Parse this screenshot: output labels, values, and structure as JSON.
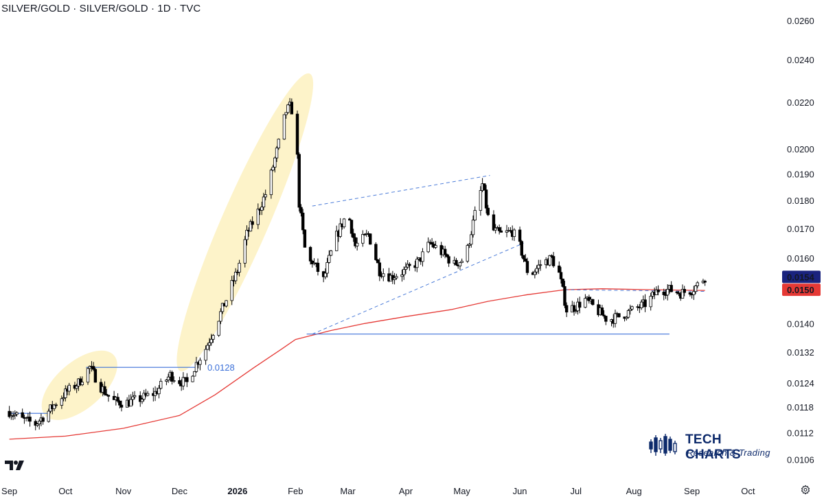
{
  "header": {
    "title": "SILVER/GOLD · SILVER/GOLD · 1D · TVC"
  },
  "brand": {
    "name": "TECH CHARTS",
    "subtitle": "Research & Trading",
    "icon": "candlestick-bars-icon",
    "color": "#0d2a6b"
  },
  "icons": {
    "platform_logo": "tradingview-logo-icon",
    "settings": "settings-gear-icon"
  },
  "colors": {
    "up_candle_fill": "#ffffff",
    "candle_outline": "#000000",
    "down_candle_fill": "#000000",
    "moving_average": "#e53935",
    "trendline": "#4a7bd8",
    "horizontal_level": "#3a6fd8",
    "highlight_ellipse": "#fdf3c9",
    "last_price_badge": "#1a237e",
    "ma_badge": "#e53935"
  },
  "chart_data": {
    "type": "candlestick",
    "title": "SILVER/GOLD · SILVER/GOLD · 1D · TVC",
    "interval": "1D",
    "y_scale": "log",
    "ylim": [
      0.0103,
      0.0263
    ],
    "y_ticks": [
      "0.0260",
      "0.0240",
      "0.0220",
      "0.0200",
      "0.0190",
      "0.0180",
      "0.0170",
      "0.0160",
      "0.0140",
      "0.0132",
      "0.0124",
      "0.0118",
      "0.0112",
      "0.0106"
    ],
    "x_ticks": [
      {
        "label": "Sep",
        "date": "2025-09-01"
      },
      {
        "label": "Oct",
        "date": "2025-10-01"
      },
      {
        "label": "Nov",
        "date": "2025-11-01"
      },
      {
        "label": "Dec",
        "date": "2025-12-01"
      },
      {
        "label": "2026",
        "date": "2026-01-01",
        "bold": true
      },
      {
        "label": "Feb",
        "date": "2026-02-01"
      },
      {
        "label": "Mar",
        "date": "2026-03-01"
      },
      {
        "label": "Apr",
        "date": "2026-04-01"
      },
      {
        "label": "May",
        "date": "2026-05-01"
      },
      {
        "label": "Jun",
        "date": "2026-06-01"
      },
      {
        "label": "Jul",
        "date": "2026-07-01"
      },
      {
        "label": "Aug",
        "date": "2026-08-01"
      },
      {
        "label": "Sep",
        "date": "2026-09-01"
      },
      {
        "label": "Oct",
        "date": "2026-10-01"
      }
    ],
    "price_path": [
      [
        "2025-09-01",
        0.0117
      ],
      [
        "2025-09-08",
        0.0115
      ],
      [
        "2025-09-15",
        0.0114
      ],
      [
        "2025-09-22",
        0.0117
      ],
      [
        "2025-10-01",
        0.01215
      ],
      [
        "2025-10-08",
        0.0124
      ],
      [
        "2025-10-14",
        0.0128
      ],
      [
        "2025-10-20",
        0.0123
      ],
      [
        "2025-10-26",
        0.01195
      ],
      [
        "2025-11-02",
        0.0119
      ],
      [
        "2025-11-10",
        0.012
      ],
      [
        "2025-11-18",
        0.01215
      ],
      [
        "2025-11-26",
        0.0126
      ],
      [
        "2025-12-01",
        0.01245
      ],
      [
        "2025-12-05",
        0.0124
      ],
      [
        "2025-12-10",
        0.0129
      ],
      [
        "2025-12-15",
        0.0133
      ],
      [
        "2025-12-20",
        0.0139
      ],
      [
        "2025-12-26",
        0.0147
      ],
      [
        "2026-01-01",
        0.0156
      ],
      [
        "2026-01-06",
        0.0168
      ],
      [
        "2026-01-12",
        0.0176
      ],
      [
        "2026-01-17",
        0.0184
      ],
      [
        "2026-01-22",
        0.0199
      ],
      [
        "2026-01-27",
        0.0216
      ],
      [
        "2026-01-29",
        0.0218
      ],
      [
        "2026-02-01",
        0.0214
      ],
      [
        "2026-02-03",
        0.0179
      ],
      [
        "2026-02-07",
        0.0158
      ],
      [
        "2026-02-10",
        0.0159
      ],
      [
        "2026-02-16",
        0.0153
      ],
      [
        "2026-02-22",
        0.0166
      ],
      [
        "2026-03-01",
        0.0176
      ],
      [
        "2026-03-05",
        0.0164
      ],
      [
        "2026-03-12",
        0.0168
      ],
      [
        "2026-03-18",
        0.0156
      ],
      [
        "2026-03-24",
        0.0154
      ],
      [
        "2026-04-01",
        0.0156
      ],
      [
        "2026-04-08",
        0.0159
      ],
      [
        "2026-04-14",
        0.0165
      ],
      [
        "2026-04-20",
        0.0162
      ],
      [
        "2026-04-27",
        0.0158
      ],
      [
        "2026-05-03",
        0.016
      ],
      [
        "2026-05-08",
        0.0175
      ],
      [
        "2026-05-12",
        0.0186
      ],
      [
        "2026-05-16",
        0.017
      ],
      [
        "2026-05-22",
        0.0168
      ],
      [
        "2026-05-28",
        0.0169
      ],
      [
        "2026-06-01",
        0.0164
      ],
      [
        "2026-06-06",
        0.0154
      ],
      [
        "2026-06-12",
        0.0158
      ],
      [
        "2026-06-18",
        0.016
      ],
      [
        "2026-06-22",
        0.0155
      ],
      [
        "2026-06-26",
        0.0144
      ],
      [
        "2026-07-01",
        0.0145
      ],
      [
        "2026-07-06",
        0.0147
      ],
      [
        "2026-07-12",
        0.0144
      ],
      [
        "2026-07-18",
        0.0141
      ],
      [
        "2026-07-24",
        0.0142
      ],
      [
        "2026-08-01",
        0.0144
      ],
      [
        "2026-08-08",
        0.0146
      ],
      [
        "2026-08-14",
        0.015
      ],
      [
        "2026-08-20",
        0.015
      ],
      [
        "2026-08-26",
        0.0149
      ],
      [
        "2026-09-01",
        0.015
      ],
      [
        "2026-09-05",
        0.0152
      ],
      [
        "2026-09-08",
        0.0154
      ]
    ],
    "moving_average": [
      [
        "2025-09-01",
        0.01105
      ],
      [
        "2025-10-01",
        0.01112
      ],
      [
        "2025-11-01",
        0.0113
      ],
      [
        "2025-12-01",
        0.0116
      ],
      [
        "2025-12-20",
        0.0121
      ],
      [
        "2026-01-10",
        0.0128
      ],
      [
        "2026-01-25",
        0.0133
      ],
      [
        "2026-02-01",
        0.01355
      ],
      [
        "2026-02-20",
        0.0138
      ],
      [
        "2026-03-10",
        0.014
      ],
      [
        "2026-04-01",
        0.0142
      ],
      [
        "2026-04-25",
        0.0144
      ],
      [
        "2026-05-15",
        0.01465
      ],
      [
        "2026-06-05",
        0.01485
      ],
      [
        "2026-06-25",
        0.015
      ],
      [
        "2026-07-15",
        0.01503
      ],
      [
        "2026-08-10",
        0.015
      ],
      [
        "2026-09-08",
        0.01498
      ]
    ],
    "horizontal_levels": [
      {
        "label": "0.0128",
        "value": 0.0128,
        "from": "2025-10-12",
        "to": "2025-12-10"
      },
      {
        "label": "",
        "value": 0.01165,
        "from": "2025-09-01",
        "to": "2025-09-22"
      },
      {
        "label": "",
        "value": 0.0137,
        "from": "2026-02-07",
        "to": "2026-08-20"
      }
    ],
    "trendlines": [
      {
        "from": [
          "2026-02-10",
          0.0137
        ],
        "to": [
          "2026-06-03",
          0.0165
        ],
        "style": "dashed"
      },
      {
        "from": [
          "2026-02-10",
          0.0178
        ],
        "to": [
          "2026-05-16",
          0.01895
        ],
        "style": "dashed"
      },
      {
        "from": [
          "2026-06-25",
          0.015
        ],
        "to": [
          "2026-09-08",
          0.01495
        ],
        "style": "dashed"
      }
    ],
    "highlight_zones": [
      {
        "from": "2025-09-25",
        "to": "2025-10-22",
        "low": 0.0118,
        "high": 0.0129
      },
      {
        "from": "2025-12-04",
        "to": "2026-02-06",
        "low": 0.013,
        "high": 0.0228
      }
    ],
    "last_price": {
      "label": "0.0154",
      "value": 0.0154
    },
    "ma_value": {
      "label": "0.0150",
      "value": 0.015
    },
    "grid": false,
    "legend": "none"
  }
}
